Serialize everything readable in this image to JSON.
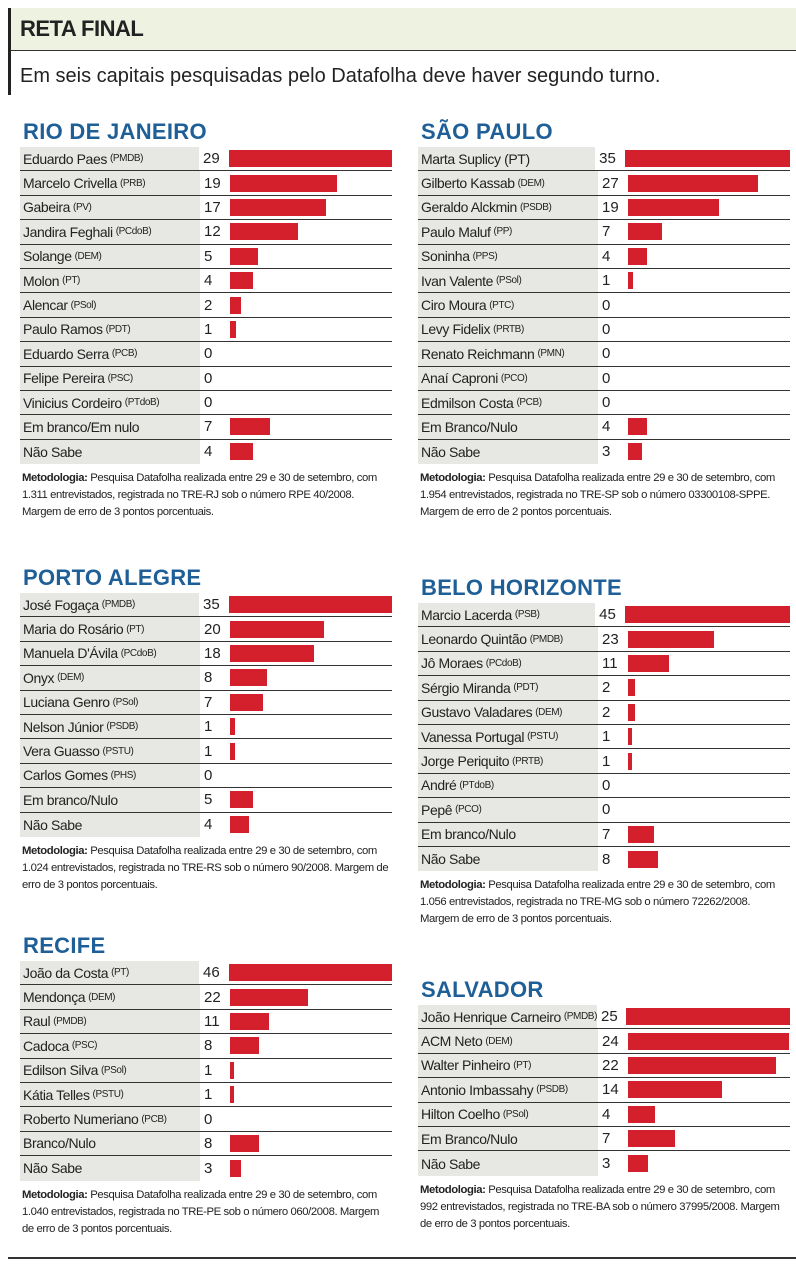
{
  "header": {
    "title": "RETA FINAL",
    "subtitle": "Em seis capitais pesquisadas pelo Datafolha deve haver segundo turno."
  },
  "colors": {
    "bar": "#d4202c",
    "city_title": "#1f5f98",
    "label_bg": "#e7e8e3"
  },
  "chart_data": [
    {
      "type": "bar",
      "title": "RIO DE JANEIRO",
      "rows": [
        [
          "Eduardo Paes",
          "(PMDB)",
          29
        ],
        [
          "Marcelo Crivella",
          "(PRB)",
          19
        ],
        [
          "Gabeira",
          "(PV)",
          17
        ],
        [
          "Jandira Feghali",
          "(PCdoB)",
          12
        ],
        [
          "Solange",
          "(DEM)",
          5
        ],
        [
          "Molon",
          "(PT)",
          4
        ],
        [
          "Alencar",
          "(PSol)",
          2
        ],
        [
          "Paulo Ramos",
          "(PDT)",
          1
        ],
        [
          "Eduardo Serra",
          "(PCB)",
          0
        ],
        [
          "Felipe Pereira",
          "(PSC)",
          0
        ],
        [
          "Vinicius Cordeiro",
          "(PTdoB)",
          0
        ],
        [
          "Em branco/Em nulo",
          "",
          7
        ],
        [
          "Não Sabe",
          "",
          4
        ]
      ],
      "meth_label": "Metodologia:",
      "meth": " Pesquisa Datafolha realizada entre 29 e 30 de setembro, com 1.311 entrevistados, registrada no TRE-RJ sob o número RPE 40/2008. Margem de erro de 3 pontos porcentuais."
    },
    {
      "type": "bar",
      "title": "SÃO PAULO",
      "rows": [
        [
          "Marta Suplicy (PT)",
          "",
          35
        ],
        [
          "Gilberto Kassab",
          "(DEM)",
          27
        ],
        [
          "Geraldo Alckmin",
          "(PSDB)",
          19
        ],
        [
          "Paulo Maluf",
          "(PP)",
          7
        ],
        [
          "Soninha",
          "(PPS)",
          4
        ],
        [
          "Ivan Valente",
          "(PSol)",
          1
        ],
        [
          "Ciro Moura",
          "(PTC)",
          0
        ],
        [
          "Levy Fidelix",
          "(PRTB)",
          0
        ],
        [
          "Renato Reichmann",
          "(PMN)",
          0
        ],
        [
          "Anaí Caproni",
          "(PCO)",
          0
        ],
        [
          "Edmilson Costa",
          "(PCB)",
          0
        ],
        [
          "Em Branco/Nulo",
          "",
          4
        ],
        [
          "Não Sabe",
          "",
          3
        ]
      ],
      "meth_label": "Metodologia:",
      "meth": " Pesquisa Datafolha realizada entre 29 e 30 de setembro, com 1.954 entrevistados, registrada no TRE-SP sob o número 03300108-SPPE. Margem de erro de 2 pontos porcentuais."
    },
    {
      "type": "bar",
      "title": "PORTO ALEGRE",
      "rows": [
        [
          "José Fogaça",
          "(PMDB)",
          35
        ],
        [
          "Maria do Rosário",
          "(PT)",
          20
        ],
        [
          "Manuela D'Ávila",
          "(PCdoB)",
          18
        ],
        [
          "Onyx",
          "(DEM)",
          8
        ],
        [
          "Luciana Genro",
          "(PSol)",
          7
        ],
        [
          "Nelson Júnior",
          "(PSDB)",
          1
        ],
        [
          "Vera Guasso",
          "(PSTU)",
          1
        ],
        [
          "Carlos Gomes",
          "(PHS)",
          0
        ],
        [
          "Em branco/Nulo",
          "",
          5
        ],
        [
          "Não Sabe",
          "",
          4
        ]
      ],
      "meth_label": "Metodologia:",
      "meth": "  Pesquisa Datafolha realizada entre 29 e 30 de setembro, com 1.024 entrevistados, registrada no TRE-RS sob o número 90/2008. Margem de erro de 3 pontos porcentuais."
    },
    {
      "type": "bar",
      "title": "BELO HORIZONTE",
      "rows": [
        [
          "Marcio Lacerda",
          "(PSB)",
          45
        ],
        [
          "Leonardo Quintão",
          "(PMDB)",
          23
        ],
        [
          "Jô Moraes",
          "(PCdoB)",
          11
        ],
        [
          "Sérgio Miranda",
          "(PDT)",
          2
        ],
        [
          "Gustavo Valadares",
          "(DEM)",
          2
        ],
        [
          "Vanessa Portugal",
          "(PSTU)",
          1
        ],
        [
          "Jorge Periquito",
          "(PRTB)",
          1
        ],
        [
          "André",
          "(PTdoB)",
          0
        ],
        [
          "Pepê",
          "(PCO)",
          0
        ],
        [
          "Em branco/Nulo",
          "",
          7
        ],
        [
          "Não Sabe",
          "",
          8
        ]
      ],
      "meth_label": "Metodologia:",
      "meth": " Pesquisa Datafolha realizada entre 29 e 30 de setembro, com 1.056 entrevistados, registrada no TRE-MG sob o número 72262/2008. Margem de erro de 3 pontos porcentuais."
    },
    {
      "type": "bar",
      "title": "RECIFE",
      "rows": [
        [
          "João da Costa",
          "(PT)",
          46
        ],
        [
          "Mendonça",
          "(DEM)",
          22
        ],
        [
          "Raul",
          "(PMDB)",
          11
        ],
        [
          "Cadoca",
          "(PSC)",
          8
        ],
        [
          "Edilson Silva",
          "(PSol)",
          1
        ],
        [
          "Kátia Telles",
          "(PSTU)",
          1
        ],
        [
          "Roberto Numeriano",
          "(PCB)",
          0
        ],
        [
          "Branco/Nulo",
          "",
          8
        ],
        [
          "Não Sabe",
          "",
          3
        ]
      ],
      "meth_label": "Metodologia:",
      "meth": " Pesquisa Datafolha realizada entre 29 e 30 de setembro, com 1.040 entrevistados, registrada no TRE-PE sob o número 060/2008. Margem de erro de 3 pontos porcentuais."
    },
    {
      "type": "bar",
      "title": "SALVADOR",
      "rows": [
        [
          "João Henrique Carneiro",
          "(PMDB)",
          25
        ],
        [
          "ACM Neto",
          "(DEM)",
          24
        ],
        [
          "Walter Pinheiro",
          "(PT)",
          22
        ],
        [
          "Antonio Imbassahy",
          "(PSDB)",
          14
        ],
        [
          "Hilton Coelho",
          "(PSol)",
          4
        ],
        [
          "Em Branco/Nulo",
          "",
          7
        ],
        [
          "Não Sabe",
          "",
          3
        ]
      ],
      "meth_label": "Metodologia:",
      "meth": " Pesquisa Datafolha realizada entre 29 e 30 de setembro, com 992 entrevistados, registrada no TRE-BA sob o número 37995/2008. Margem de erro de 3 pontos porcentuais."
    }
  ]
}
